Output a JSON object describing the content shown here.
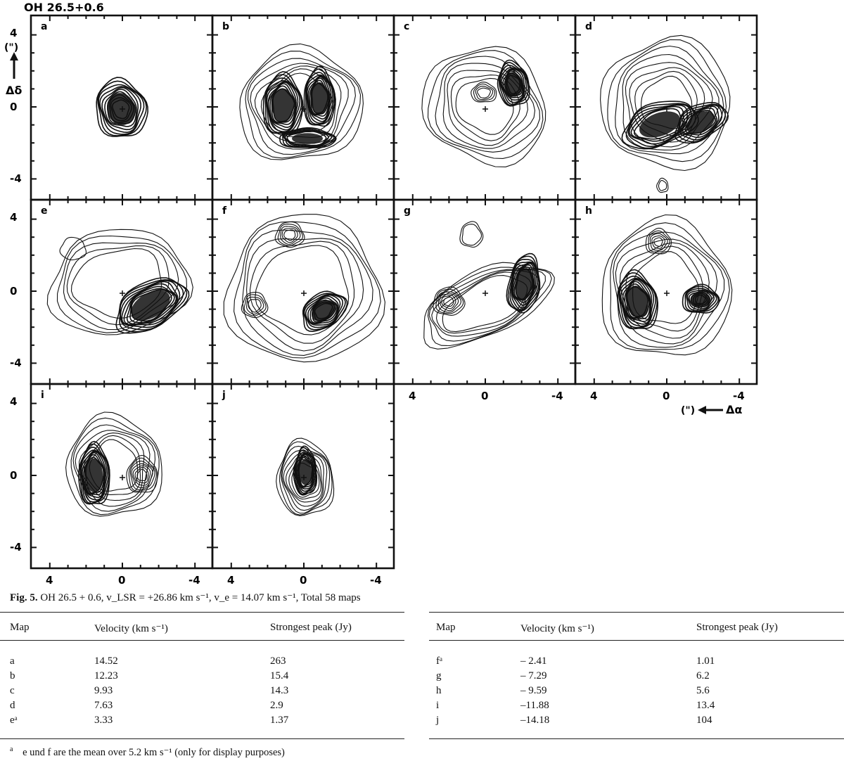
{
  "figure": {
    "title": "OH  26.5+0.6",
    "panels": [
      {
        "id": "a"
      },
      {
        "id": "b"
      },
      {
        "id": "c"
      },
      {
        "id": "d"
      },
      {
        "id": "e"
      },
      {
        "id": "f"
      },
      {
        "id": "g"
      },
      {
        "id": "h"
      },
      {
        "id": "i"
      },
      {
        "id": "j"
      }
    ],
    "y_ticks": [
      "4",
      "0",
      "-4"
    ],
    "x_ticks": [
      "4",
      "0",
      "-4"
    ],
    "y_axis_label_unit": "(\")",
    "y_axis_label": "Δδ",
    "x_axis_label_unit": "(\")",
    "x_axis_label": "Δα"
  },
  "caption": {
    "label": "Fig. 5.",
    "text": "OH 26.5 + 0.6, v_LSR = +26.86 km s⁻¹, v_e = 14.07 km s⁻¹, Total 58 maps"
  },
  "table": {
    "headers": [
      "Map",
      "Velocity (km s⁻¹)",
      "Strongest peak (Jy)"
    ],
    "left_rows": [
      {
        "map": "a",
        "velocity": "14.52",
        "peak": "263"
      },
      {
        "map": "b",
        "velocity": "12.23",
        "peak": "15.4"
      },
      {
        "map": "c",
        "velocity": "9.93",
        "peak": "14.3"
      },
      {
        "map": "d",
        "velocity": "7.63",
        "peak": "2.9"
      },
      {
        "map": "eᵃ",
        "velocity": "3.33",
        "peak": "1.37"
      }
    ],
    "right_rows": [
      {
        "map": "fᵃ",
        "velocity": "– 2.41",
        "peak": "1.01"
      },
      {
        "map": "g",
        "velocity": "– 7.29",
        "peak": "6.2"
      },
      {
        "map": "h",
        "velocity": "– 9.59",
        "peak": "5.6"
      },
      {
        "map": "i",
        "velocity": "–11.88",
        "peak": "13.4"
      },
      {
        "map": "j",
        "velocity": "–14.18",
        "peak": "104"
      }
    ]
  },
  "footnote": {
    "marker": "a",
    "text": "e und f are the mean over 5.2 km s⁻¹ (only for display purposes)"
  }
}
